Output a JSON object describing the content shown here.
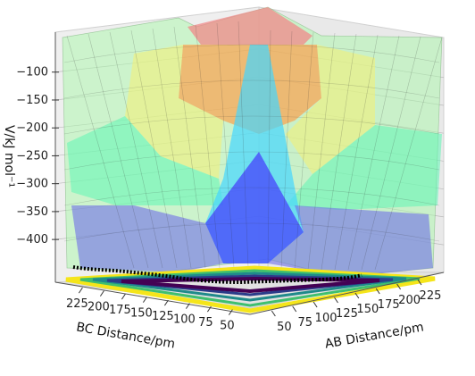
{
  "chart_data": {
    "type": "surface3d",
    "z_axis": {
      "label": "V/kJ mol⁻¹",
      "ticks": [
        "−100",
        "−150",
        "−200",
        "−250",
        "−300",
        "−350",
        "−400"
      ],
      "tick_values": [
        -100,
        -150,
        -200,
        -250,
        -300,
        -350,
        -400
      ],
      "range": [
        -435,
        -70
      ]
    },
    "bc_axis": {
      "label": "BC Distance/pm",
      "ticks": [
        "225",
        "200",
        "175",
        "150",
        "125",
        "100",
        "75",
        "50"
      ],
      "tick_values": [
        225,
        200,
        175,
        150,
        125,
        100,
        75,
        50
      ],
      "range": [
        240,
        40
      ]
    },
    "ab_axis": {
      "label": "AB Distance/pm",
      "ticks": [
        "50",
        "75",
        "100",
        "125",
        "150",
        "175",
        "200",
        "225"
      ],
      "tick_values": [
        50,
        75,
        100,
        125,
        150,
        175,
        200,
        225
      ],
      "range": [
        40,
        240
      ]
    },
    "surface_color_bands": [
      {
        "z_min": -120,
        "color": "#f08a8a"
      },
      {
        "z_min": -190,
        "color": "#ffa04a"
      },
      {
        "z_min": -250,
        "color": "#f6f06a"
      },
      {
        "z_min": -310,
        "color": "#a8f5a8"
      },
      {
        "z_min": -370,
        "color": "#4ad8ff"
      },
      {
        "z_min": -435,
        "color": "#5c4dff"
      }
    ],
    "trajectory_color": "#000000",
    "grid": true
  }
}
